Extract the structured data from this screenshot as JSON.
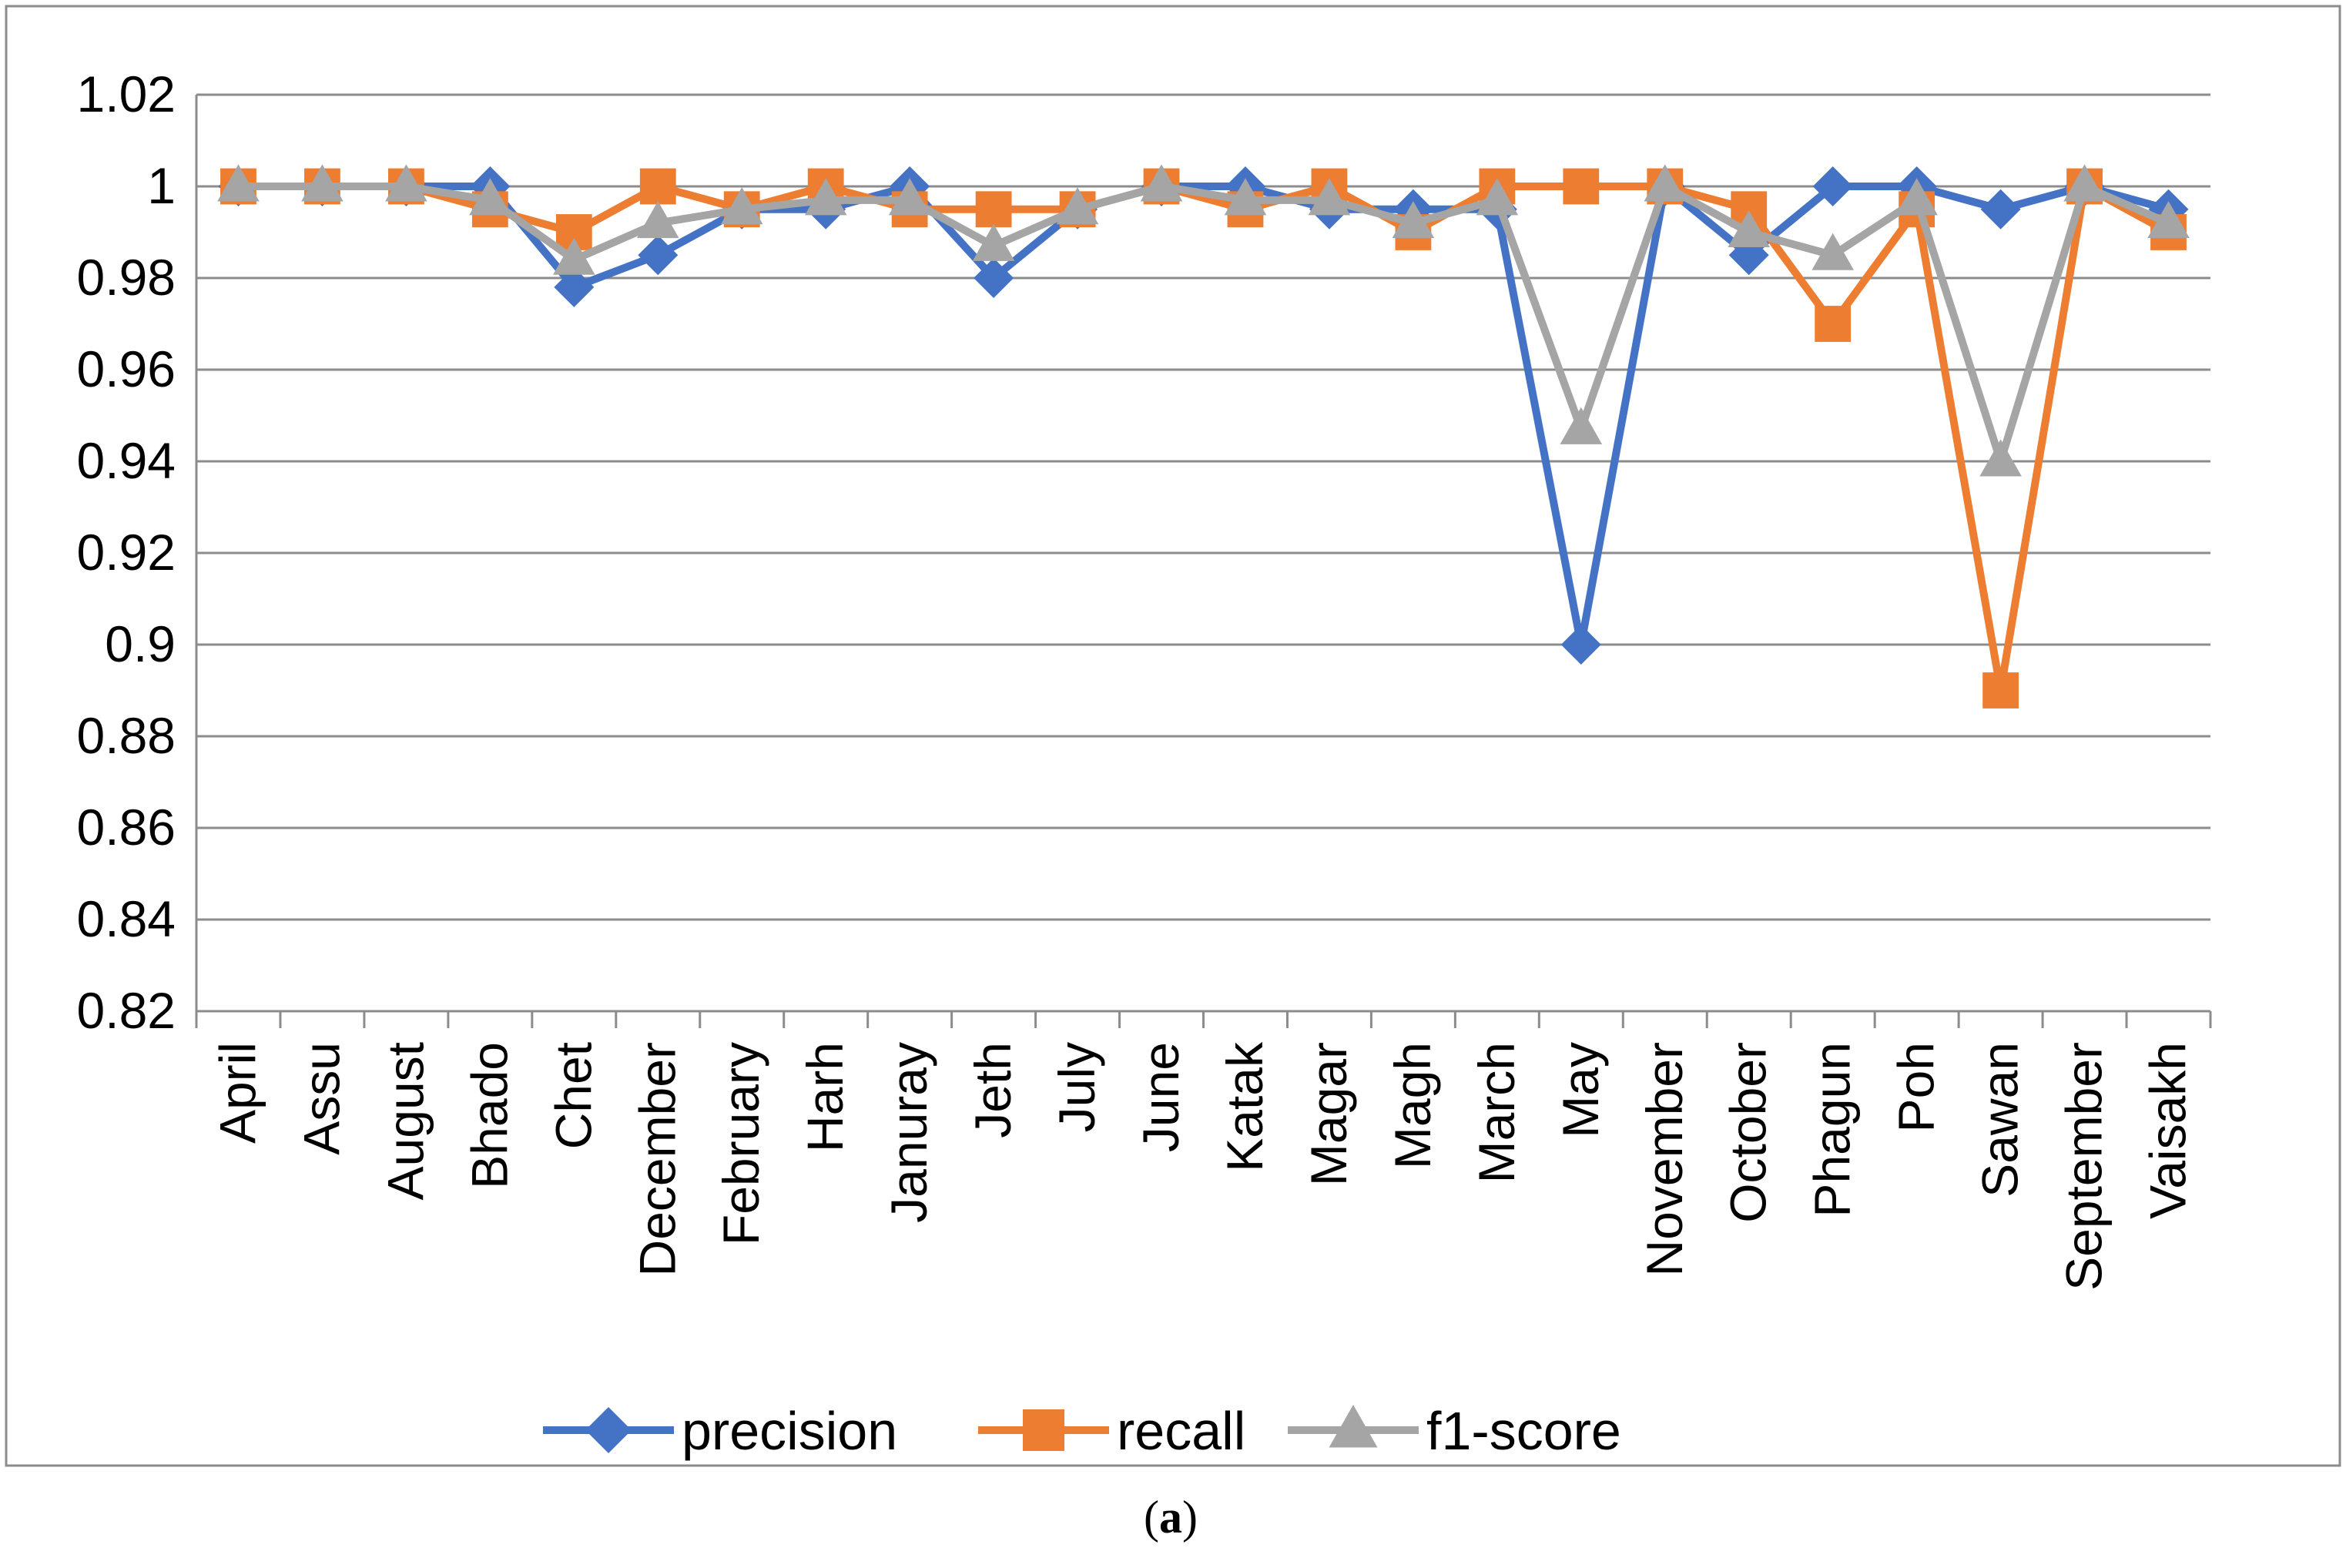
{
  "chart_data": {
    "type": "line",
    "title": "",
    "xlabel": "",
    "ylabel": "",
    "ylim": [
      0.82,
      1.02
    ],
    "ytick_step": 0.02,
    "yticks": [
      "0.82",
      "0.84",
      "0.86",
      "0.88",
      "0.9",
      "0.92",
      "0.94",
      "0.96",
      "0.98",
      "1",
      "1.02"
    ],
    "grid": true,
    "legend_position": "bottom",
    "categories": [
      "April",
      "Assu",
      "August",
      "Bhado",
      "Chet",
      "December",
      "February",
      "Harh",
      "Januray",
      "Jeth",
      "July",
      "June",
      "Katak",
      "Magar",
      "Magh",
      "March",
      "May",
      "November",
      "October",
      "Phagun",
      "Poh",
      "Sawan",
      "September",
      "Vaisakh"
    ],
    "series": [
      {
        "name": "precision",
        "color": "#4472C4",
        "marker": "diamond",
        "values": [
          1,
          1,
          1,
          1,
          0.978,
          0.985,
          0.995,
          0.995,
          1,
          0.98,
          0.995,
          1,
          1,
          0.995,
          0.995,
          0.995,
          0.9,
          1,
          0.985,
          1,
          1,
          0.995,
          1,
          0.995
        ]
      },
      {
        "name": "recall",
        "color": "#ED7D31",
        "marker": "square",
        "values": [
          1,
          1,
          1,
          0.995,
          0.99,
          1,
          0.995,
          1,
          0.995,
          0.995,
          0.995,
          1,
          0.995,
          1,
          0.99,
          1,
          1,
          1,
          0.995,
          0.97,
          0.995,
          0.89,
          1,
          0.99
        ]
      },
      {
        "name": "f1-score",
        "color": "#A5A5A5",
        "marker": "triangle",
        "values": [
          1,
          1,
          1,
          0.997,
          0.984,
          0.992,
          0.995,
          0.997,
          0.997,
          0.987,
          0.995,
          1,
          0.997,
          0.997,
          0.992,
          0.997,
          0.947,
          1,
          0.99,
          0.985,
          0.997,
          0.94,
          1,
          0.992
        ]
      }
    ]
  },
  "caption": {
    "open": "(",
    "letter": "a",
    "close": ")"
  }
}
